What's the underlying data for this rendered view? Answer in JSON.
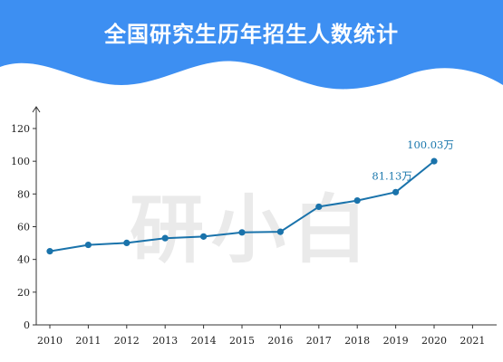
{
  "title": "全国研究生历年招生人数统计",
  "watermark": "研小白",
  "colors": {
    "header": "#3d8ff2",
    "line": "#1a73ab",
    "label": "#1b78ad",
    "axis": "#333333"
  },
  "chart_data": {
    "type": "line",
    "title": "全国研究生历年招生人数统计",
    "xlabel": "",
    "ylabel": "",
    "categories": [
      "2010",
      "2011",
      "2012",
      "2013",
      "2014",
      "2015",
      "2016",
      "2017",
      "2018",
      "2019",
      "2020",
      "2021"
    ],
    "ylim": [
      0,
      130
    ],
    "yticks": [
      0,
      20,
      40,
      60,
      80,
      100,
      120
    ],
    "grid": false,
    "series": [
      {
        "values": [
          45.0,
          48.9,
          50.1,
          53.0,
          54.0,
          56.5,
          56.9,
          72.2,
          76.0,
          81.13,
          100.03,
          null
        ]
      }
    ],
    "annotations": [
      {
        "category": "2019",
        "text": "81.13万"
      },
      {
        "category": "2020",
        "text": "100.03万"
      }
    ]
  }
}
